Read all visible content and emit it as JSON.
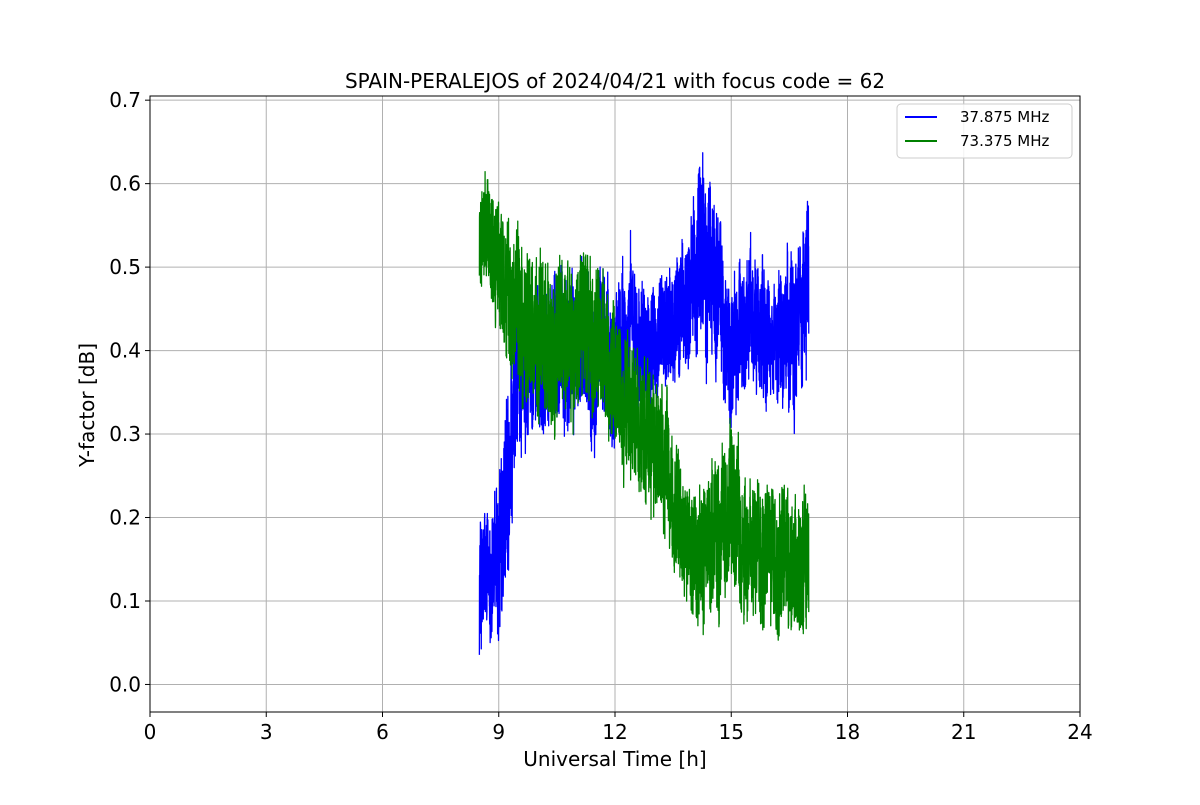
{
  "chart_data": {
    "type": "line",
    "title": "SPAIN-PERALEJOS of 2024/04/21 with focus code = 62",
    "xlabel": "Universal Time [h]",
    "ylabel": "Y-factor [dB]",
    "xlim": [
      0,
      24
    ],
    "ylim": [
      -0.033,
      0.705
    ],
    "xticks": [
      0,
      3,
      6,
      9,
      12,
      15,
      18,
      21,
      24
    ],
    "yticks": [
      0.0,
      0.1,
      0.2,
      0.3,
      0.4,
      0.5,
      0.6,
      0.7
    ],
    "xtick_labels": [
      "0",
      "3",
      "6",
      "9",
      "12",
      "15",
      "18",
      "21",
      "24"
    ],
    "ytick_labels": [
      "0.0",
      "0.1",
      "0.2",
      "0.3",
      "0.4",
      "0.5",
      "0.6",
      "0.7"
    ],
    "grid": true,
    "legend_position": "top-right",
    "series": [
      {
        "name": "37.875 MHz",
        "color": "#0000ff",
        "x": [
          8.5,
          8.75,
          9.0,
          9.25,
          9.5,
          9.75,
          10.0,
          10.25,
          10.5,
          10.75,
          11.0,
          11.25,
          11.5,
          11.75,
          12.0,
          12.25,
          12.5,
          12.75,
          13.0,
          13.25,
          13.5,
          13.75,
          14.0,
          14.25,
          14.5,
          14.75,
          15.0,
          15.25,
          15.5,
          15.75,
          16.0,
          16.25,
          16.5,
          16.75,
          17.0
        ],
        "y": [
          0.12,
          0.13,
          0.15,
          0.22,
          0.37,
          0.38,
          0.4,
          0.39,
          0.4,
          0.41,
          0.4,
          0.41,
          0.4,
          0.39,
          0.38,
          0.42,
          0.43,
          0.42,
          0.4,
          0.42,
          0.43,
          0.45,
          0.48,
          0.52,
          0.5,
          0.45,
          0.38,
          0.42,
          0.45,
          0.42,
          0.4,
          0.42,
          0.43,
          0.45,
          0.5
        ],
        "band": [
          0.1,
          0.09,
          0.13,
          0.14,
          0.12,
          0.1,
          0.1,
          0.1,
          0.11,
          0.11,
          0.1,
          0.11,
          0.11,
          0.11,
          0.12,
          0.1,
          0.1,
          0.09,
          0.08,
          0.08,
          0.09,
          0.09,
          0.11,
          0.15,
          0.13,
          0.11,
          0.1,
          0.1,
          0.1,
          0.1,
          0.09,
          0.1,
          0.11,
          0.12,
          0.13
        ]
      },
      {
        "name": "73.375 MHz",
        "color": "#008000",
        "x": [
          8.5,
          8.75,
          9.0,
          9.25,
          9.5,
          9.75,
          10.0,
          10.25,
          10.5,
          10.75,
          11.0,
          11.25,
          11.5,
          11.75,
          12.0,
          12.25,
          12.5,
          12.75,
          13.0,
          13.25,
          13.5,
          13.75,
          14.0,
          14.25,
          14.5,
          14.75,
          15.0,
          15.25,
          15.5,
          15.75,
          16.0,
          16.25,
          16.5,
          16.75,
          17.0
        ],
        "y": [
          0.53,
          0.55,
          0.5,
          0.45,
          0.43,
          0.42,
          0.41,
          0.4,
          0.41,
          0.42,
          0.42,
          0.41,
          0.42,
          0.4,
          0.36,
          0.33,
          0.32,
          0.3,
          0.28,
          0.26,
          0.22,
          0.2,
          0.16,
          0.14,
          0.17,
          0.2,
          0.22,
          0.18,
          0.15,
          0.16,
          0.17,
          0.16,
          0.15,
          0.14,
          0.14
        ],
        "band": [
          0.08,
          0.08,
          0.09,
          0.11,
          0.12,
          0.11,
          0.11,
          0.11,
          0.11,
          0.11,
          0.11,
          0.11,
          0.11,
          0.11,
          0.1,
          0.1,
          0.1,
          0.1,
          0.1,
          0.09,
          0.09,
          0.09,
          0.09,
          0.11,
          0.1,
          0.12,
          0.11,
          0.1,
          0.1,
          0.1,
          0.1,
          0.1,
          0.1,
          0.1,
          0.1
        ]
      }
    ]
  }
}
